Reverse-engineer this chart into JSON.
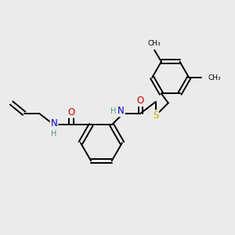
{
  "background_color": "#ebebeb",
  "bond_color": "#000000",
  "atom_colors": {
    "N": "#0000cc",
    "O": "#cc0000",
    "S": "#ccaa00",
    "C": "#000000",
    "H": "#4a9a8a"
  },
  "figsize": [
    3.0,
    3.0
  ],
  "dpi": 100
}
